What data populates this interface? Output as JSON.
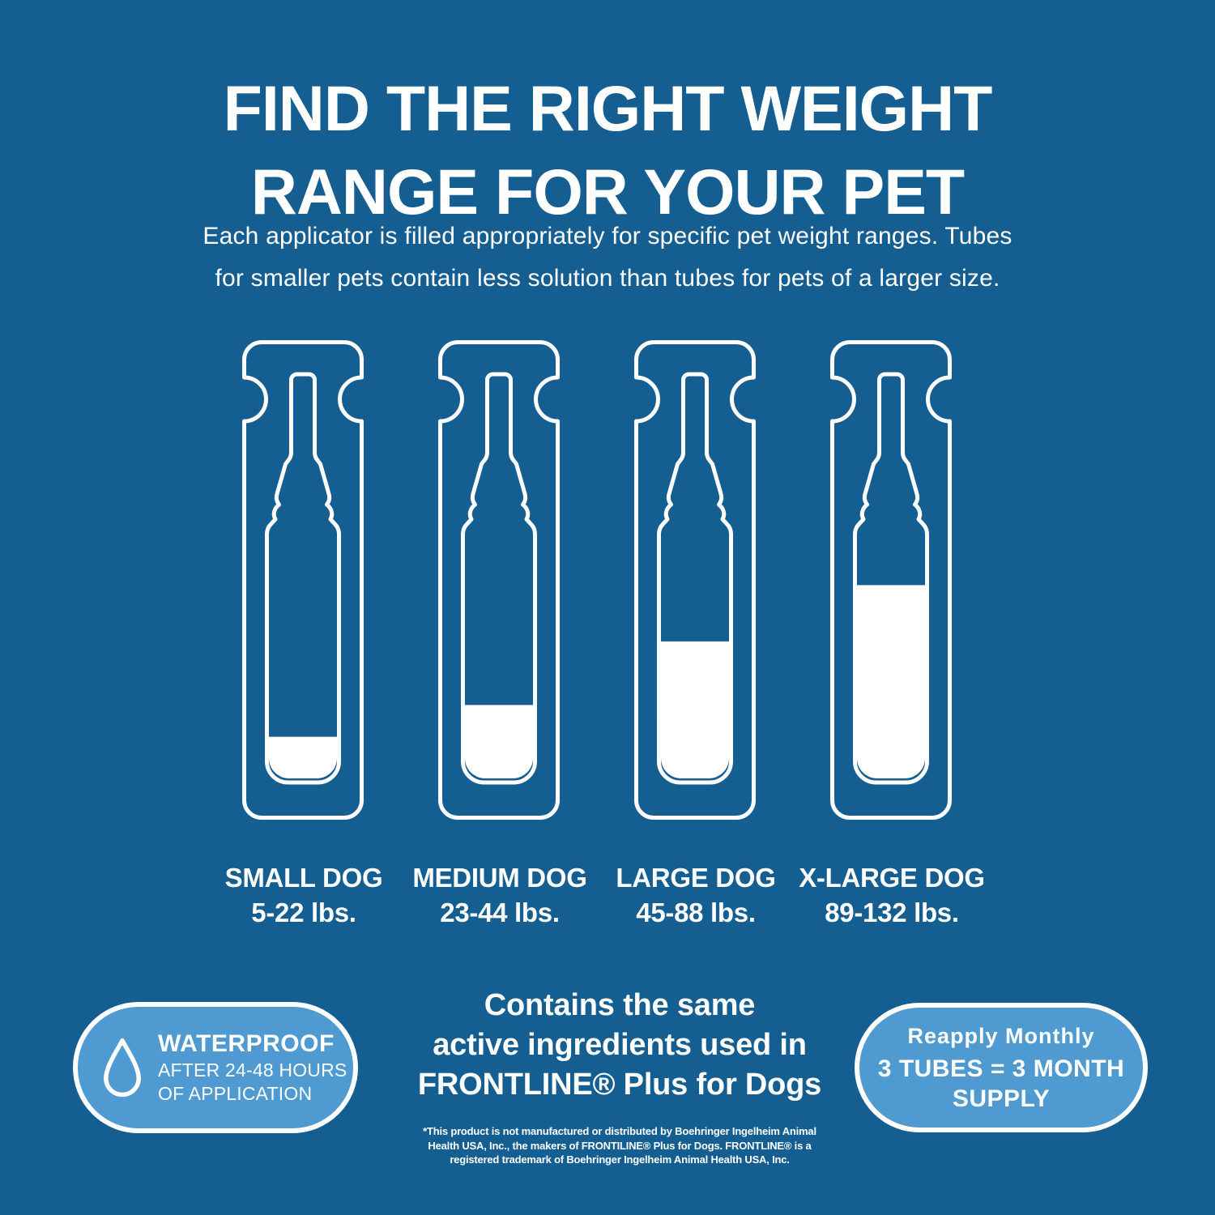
{
  "colors": {
    "background": "#145e91",
    "badge_fill": "#4e9ad1",
    "text": "#ffffff"
  },
  "header": {
    "title_line1": "FIND THE RIGHT WEIGHT",
    "title_line2": "RANGE FOR YOUR PET",
    "subtitle_line1": "Each applicator is filled appropriately for specific pet weight ranges. Tubes",
    "subtitle_line2": "for smaller pets contain less solution than tubes for pets of a larger size."
  },
  "chart_data": {
    "type": "bar",
    "title": "Applicator solution fill level by pet size",
    "categories": [
      "SMALL DOG",
      "MEDIUM DOG",
      "LARGE DOG",
      "X-LARGE DOG"
    ],
    "values": [
      18,
      31,
      57,
      80
    ],
    "value_unit": "percent of tube filled (estimated)",
    "weight_ranges": [
      "5-22 lbs.",
      "23-44 lbs.",
      "45-88 lbs.",
      "89-132 lbs."
    ]
  },
  "tubes": [
    {
      "name": "SMALL DOG",
      "weight": "5-22 lbs.",
      "fill_percent": 18
    },
    {
      "name": "MEDIUM DOG",
      "weight": "23-44 lbs.",
      "fill_percent": 31
    },
    {
      "name": "LARGE DOG",
      "weight": "45-88 lbs.",
      "fill_percent": 57
    },
    {
      "name": "X-LARGE DOG",
      "weight": "89-132 lbs.",
      "fill_percent": 80
    }
  ],
  "footer": {
    "waterproof_badge": {
      "icon": "water-drop-icon",
      "title": "WATERPROOF",
      "line1": "AFTER 24-48 HOURS",
      "line2": "OF APPLICATION"
    },
    "center_claim": {
      "line1": "Contains the same",
      "line2": "active ingredients used in",
      "line3": "FRONTLINE® Plus for Dogs"
    },
    "disclaimer": {
      "line1": "*This product is not manufactured or distributed by Boehringer Ingelheim Animal",
      "line2": "Health USA, Inc., the makers of FRONTILINE® Plus for Dogs. FRONTLINE® is a",
      "line3": "registered trademark of Boehringer Ingelheim Animal Health USA, Inc."
    },
    "supply_badge": {
      "line1": "Reapply Monthly",
      "line2": "3 TUBES = 3 MONTH",
      "line3": "SUPPLY"
    }
  }
}
